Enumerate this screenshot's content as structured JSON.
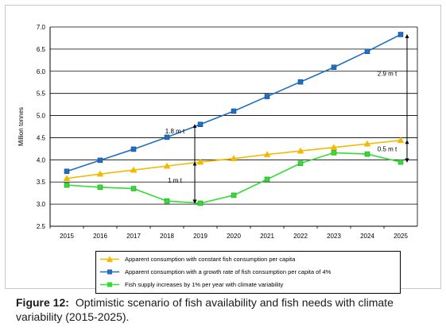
{
  "chart_data": {
    "type": "line",
    "ylabel": "Million tonnes",
    "xlabel": "",
    "ylim": [
      2.5,
      7.0
    ],
    "yticks": [
      "2.5",
      "3.0",
      "3.5",
      "4.0",
      "4.5",
      "5.0",
      "5.5",
      "6.0",
      "6.5",
      "7.0"
    ],
    "categories": [
      "2015",
      "2016",
      "2017",
      "2018",
      "2019",
      "2020",
      "2021",
      "2022",
      "2023",
      "2024",
      "2025"
    ],
    "grid": true,
    "legend_position": "bottom",
    "series": [
      {
        "name": "Apparent consumption with constant fish consumption per capita",
        "color": "#f5b800",
        "marker": "triangle",
        "values": [
          3.58,
          3.68,
          3.77,
          3.86,
          3.95,
          4.03,
          4.12,
          4.2,
          4.28,
          4.36,
          4.44
        ]
      },
      {
        "name": "Apparent consumption with a growth rate of fish consumption per capita of 4%",
        "color": "#1f6fc5",
        "marker": "square",
        "values": [
          3.74,
          3.99,
          4.24,
          4.51,
          4.8,
          5.1,
          5.43,
          5.76,
          6.09,
          6.45,
          6.83
        ]
      },
      {
        "name": "Fish supply increases by 1% per year with climate variability",
        "color": "#33dd33",
        "marker": "square",
        "values": [
          3.43,
          3.38,
          3.35,
          3.07,
          3.02,
          3.2,
          3.56,
          3.92,
          4.16,
          4.13,
          3.95
        ]
      }
    ],
    "annotations": [
      {
        "text": "1 m t",
        "x": "2019",
        "y_from": 3.02,
        "y_to": 3.95,
        "label_y": 3.54
      },
      {
        "text": "1.8 m t",
        "x": "2019",
        "y_from": 3.02,
        "y_to": 4.8,
        "label_y": 4.65
      },
      {
        "text": "2.9 m t",
        "x": "2025",
        "y_from": 3.95,
        "y_to": 6.83,
        "label_y": 5.95
      },
      {
        "text": "0.5 m t",
        "x": "2025",
        "y_from": 3.95,
        "y_to": 4.44,
        "label_y": 4.25
      }
    ]
  },
  "caption": {
    "label": "Figure 12:",
    "text": "Optimistic scenario of fish availability and fish needs with climate variability (2015-2025)."
  }
}
